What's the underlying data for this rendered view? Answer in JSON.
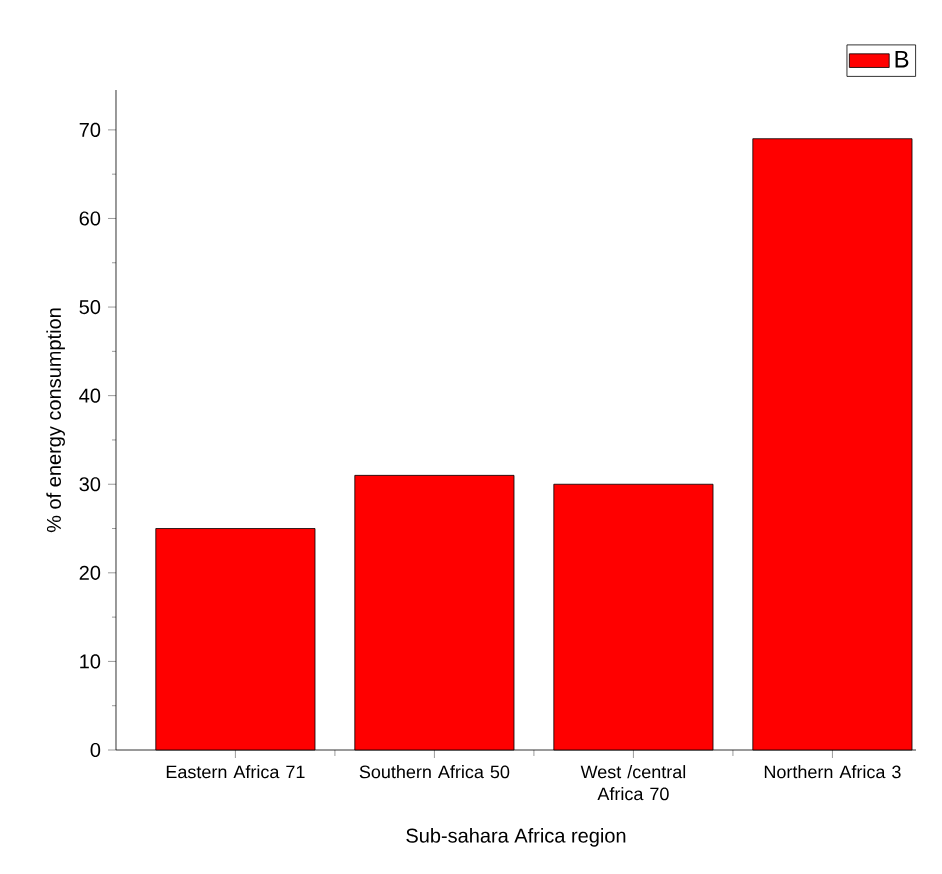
{
  "chart_data": {
    "type": "bar",
    "xlabel": "Sub-sahara Africa region",
    "ylabel": "% of energy consumption",
    "categories": [
      "Eastern Africa 71",
      "Southern Africa 50",
      "West /central Africa 70",
      "Northern Africa 3"
    ],
    "series": [
      {
        "name": "B",
        "color": "#ff0000",
        "values": [
          25,
          31,
          30,
          69
        ]
      }
    ],
    "ylim": [
      0,
      74.5
    ],
    "yticks": [
      0,
      10,
      20,
      30,
      40,
      50,
      60,
      70
    ],
    "grid": false,
    "legend": "top right"
  }
}
